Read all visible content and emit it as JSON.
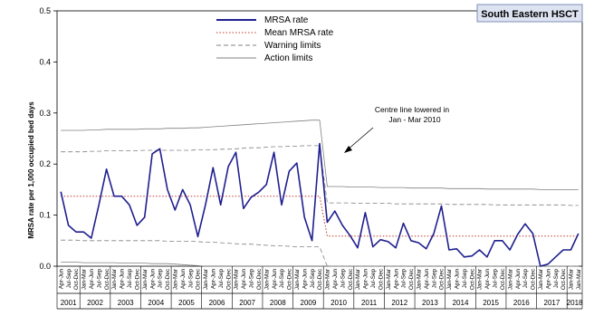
{
  "chart_data": {
    "type": "line",
    "badge": "South Eastern HSCT",
    "ylabel": "MRSA rate per 1,000 occupied bed days",
    "ylim": [
      0,
      0.5
    ],
    "yticks": [
      "0.0",
      "0.1",
      "0.2",
      "0.3",
      "0.4",
      "0.5"
    ],
    "quarters": [
      "Apr-Jun",
      "Jul-Sep",
      "Oct-Dec",
      "Jan-Mar"
    ],
    "first_quarter_label": "Apr-Jun",
    "last_quarter_label": "Jan-Mar",
    "years": [
      "2001",
      "2002",
      "2003",
      "2004",
      "2005",
      "2006",
      "2007",
      "2008",
      "2009",
      "2010",
      "2011",
      "2012",
      "2013",
      "2014",
      "2015",
      "2016",
      "2017",
      "2018"
    ],
    "legend": [
      {
        "name": "MRSA rate",
        "style": "solid-blue"
      },
      {
        "name": "Mean MRSA rate",
        "style": "dotted-red"
      },
      {
        "name": "Warning limits",
        "style": "dashed-grey"
      },
      {
        "name": "Action limits",
        "style": "solid-grey"
      }
    ],
    "annotation": {
      "line1": "Centre line lowered in",
      "line2": "Jan - Mar 2010"
    },
    "series": [
      {
        "name": "MRSA rate",
        "color": "#1f1f8f",
        "values": [
          0.146,
          0.08,
          0.067,
          0.067,
          0.055,
          0.12,
          0.19,
          0.137,
          0.137,
          0.12,
          0.08,
          0.096,
          0.22,
          0.23,
          0.15,
          0.11,
          0.15,
          0.12,
          0.058,
          0.12,
          0.193,
          0.12,
          0.195,
          0.223,
          0.113,
          0.135,
          0.145,
          0.16,
          0.223,
          0.12,
          0.186,
          0.202,
          0.096,
          0.05,
          0.24,
          0.086,
          0.108,
          0.08,
          0.06,
          0.036,
          0.105,
          0.038,
          0.052,
          0.048,
          0.036,
          0.084,
          0.05,
          0.046,
          0.034,
          0.064,
          0.118,
          0.032,
          0.034,
          0.018,
          0.02,
          0.032,
          0.018,
          0.05,
          0.05,
          0.032,
          0.062,
          0.083,
          0.064,
          0.0,
          0.004,
          0.018,
          0.032,
          0.032,
          0.064
        ]
      },
      {
        "name": "Mean MRSA rate",
        "color": "#c0392b",
        "values": [
          0.137,
          0.137,
          0.137,
          0.137,
          0.137,
          0.137,
          0.137,
          0.137,
          0.137,
          0.137,
          0.137,
          0.137,
          0.137,
          0.137,
          0.137,
          0.137,
          0.137,
          0.137,
          0.137,
          0.137,
          0.137,
          0.137,
          0.137,
          0.137,
          0.137,
          0.137,
          0.137,
          0.137,
          0.137,
          0.137,
          0.137,
          0.137,
          0.137,
          0.137,
          0.137,
          0.059,
          0.059,
          0.059,
          0.059,
          0.059,
          0.059,
          0.059,
          0.059,
          0.059,
          0.059,
          0.059,
          0.059,
          0.059,
          0.059,
          0.059,
          0.059,
          0.059,
          0.059,
          0.059,
          0.059,
          0.059,
          0.059,
          0.059,
          0.059,
          0.059,
          0.059,
          0.059,
          0.059,
          0.059,
          0.059,
          0.059,
          0.059,
          0.059,
          0.059
        ]
      },
      {
        "name": "Warning limits (upper)",
        "color": "#808080",
        "values": [
          0.224,
          0.224,
          0.224,
          0.224,
          0.225,
          0.225,
          0.226,
          0.226,
          0.226,
          0.226,
          0.226,
          0.227,
          0.227,
          0.227,
          0.227,
          0.227,
          0.227,
          0.227,
          0.228,
          0.228,
          0.228,
          0.229,
          0.229,
          0.23,
          0.231,
          0.232,
          0.232,
          0.233,
          0.234,
          0.234,
          0.235,
          0.235,
          0.236,
          0.236,
          0.236,
          0.124,
          0.124,
          0.124,
          0.124,
          0.123,
          0.123,
          0.123,
          0.123,
          0.123,
          0.122,
          0.122,
          0.122,
          0.122,
          0.122,
          0.122,
          0.122,
          0.121,
          0.121,
          0.121,
          0.121,
          0.121,
          0.121,
          0.12,
          0.12,
          0.12,
          0.12,
          0.12,
          0.12,
          0.12,
          0.12,
          0.12,
          0.12,
          0.119,
          0.119
        ]
      },
      {
        "name": "Warning limits (lower)",
        "color": "#808080",
        "values": [
          0.051,
          0.051,
          0.051,
          0.05,
          0.05,
          0.05,
          0.05,
          0.05,
          0.05,
          0.05,
          0.05,
          0.05,
          0.05,
          0.05,
          0.049,
          0.049,
          0.049,
          0.049,
          0.048,
          0.047,
          0.047,
          0.046,
          0.045,
          0.044,
          0.043,
          0.043,
          0.042,
          0.041,
          0.04,
          0.04,
          0.039,
          0.038,
          0.038,
          0.038,
          0.038,
          0.0,
          0.0,
          0.0,
          0.0,
          0.0,
          0.0,
          0.0,
          0.0,
          0.0,
          0.0,
          0.0,
          0.0,
          0.0,
          0.0,
          0.0,
          0.0,
          0.0,
          0.0,
          0.0,
          0.0,
          0.0,
          0.0,
          0.0,
          0.0,
          0.0,
          0.0,
          0.0,
          0.0,
          0.0,
          0.0,
          0.0,
          0.0,
          0.0,
          0.0
        ]
      },
      {
        "name": "Action limits (upper)",
        "color": "#808080",
        "values": [
          0.266,
          0.266,
          0.266,
          0.266,
          0.267,
          0.267,
          0.268,
          0.268,
          0.268,
          0.268,
          0.268,
          0.269,
          0.269,
          0.269,
          0.27,
          0.27,
          0.27,
          0.271,
          0.271,
          0.272,
          0.273,
          0.274,
          0.275,
          0.276,
          0.277,
          0.278,
          0.279,
          0.28,
          0.281,
          0.282,
          0.283,
          0.284,
          0.285,
          0.286,
          0.286,
          0.156,
          0.156,
          0.156,
          0.155,
          0.155,
          0.155,
          0.155,
          0.154,
          0.154,
          0.154,
          0.154,
          0.153,
          0.153,
          0.153,
          0.153,
          0.153,
          0.152,
          0.152,
          0.152,
          0.152,
          0.152,
          0.151,
          0.151,
          0.151,
          0.151,
          0.151,
          0.151,
          0.151,
          0.15,
          0.15,
          0.15,
          0.15,
          0.15,
          0.15
        ]
      },
      {
        "name": "Action limits (lower)",
        "color": "#808080",
        "values": [
          0.008,
          0.008,
          0.008,
          0.007,
          0.007,
          0.007,
          0.007,
          0.007,
          0.006,
          0.006,
          0.006,
          0.006,
          0.005,
          0.005,
          0.005,
          0.004,
          0.003,
          0.002,
          0.001,
          0.0,
          0.0,
          0.0,
          0.0,
          0.0,
          0.0,
          0.0,
          0.0,
          0.0,
          0.0,
          0.0,
          0.0,
          0.0,
          0.0,
          0.0,
          0.0,
          0.0,
          0.0,
          0.0,
          0.0,
          0.0,
          0.0,
          0.0,
          0.0,
          0.0,
          0.0,
          0.0,
          0.0,
          0.0,
          0.0,
          0.0,
          0.0,
          0.0,
          0.0,
          0.0,
          0.0,
          0.0,
          0.0,
          0.0,
          0.0,
          0.0,
          0.0,
          0.0,
          0.0,
          0.0,
          0.0,
          0.0,
          0.0,
          0.0,
          0.0
        ]
      }
    ]
  }
}
